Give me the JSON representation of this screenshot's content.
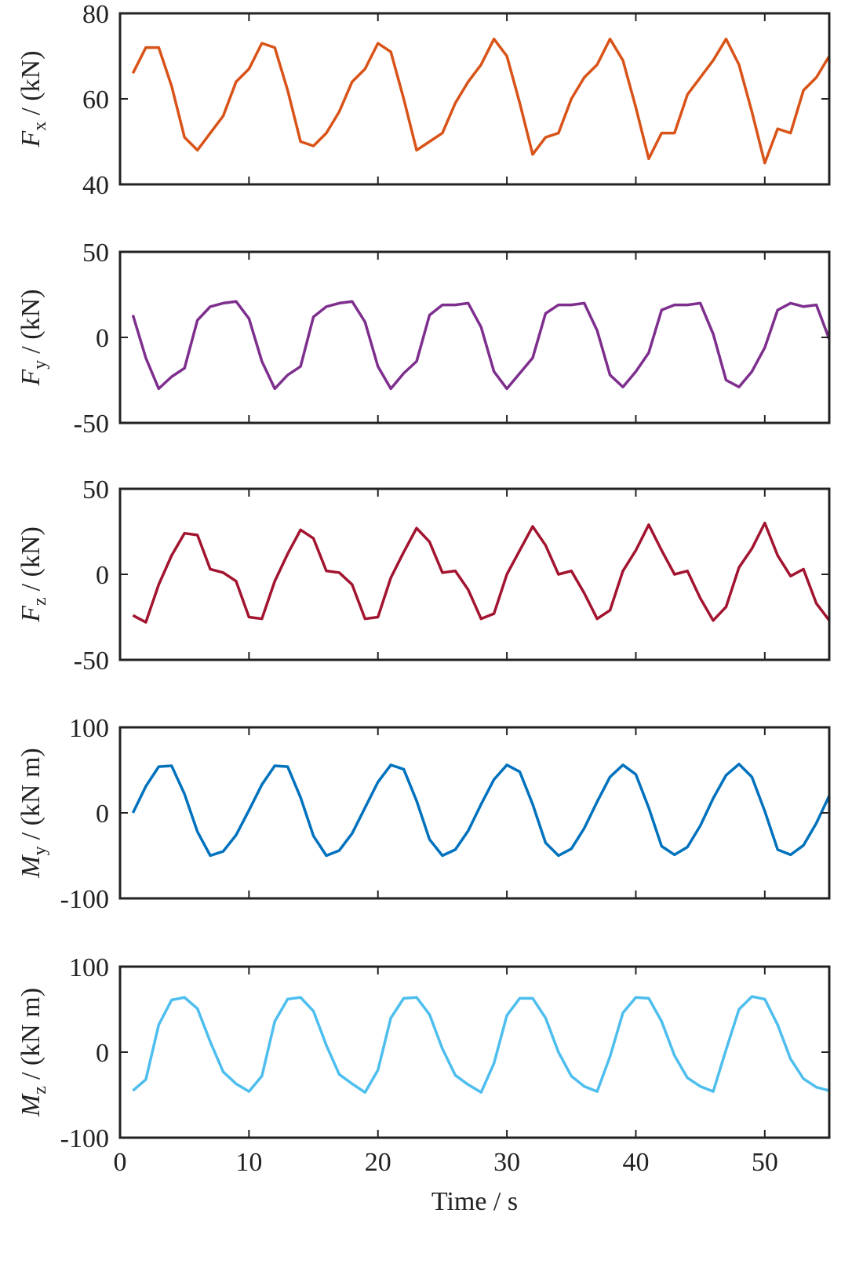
{
  "chart_data": [
    {
      "type": "line",
      "ylabel": {
        "symbol": "F",
        "subscript": "x",
        "unit": "/ (kN)"
      },
      "x": [
        1,
        2,
        3,
        4,
        5,
        6,
        7,
        8,
        9,
        10,
        11,
        12,
        13,
        14,
        15,
        16,
        17,
        18,
        19,
        20,
        21,
        22,
        23,
        24,
        25,
        26,
        27,
        28,
        29,
        30,
        31,
        32,
        33,
        34,
        35,
        36,
        37,
        38,
        39,
        40,
        41,
        42,
        43,
        44,
        45,
        46,
        47,
        48,
        49,
        50,
        51,
        52,
        53,
        54,
        55
      ],
      "series": [
        {
          "color": "#D95319",
          "values": [
            66,
            72,
            72,
            63,
            51,
            48,
            52,
            56,
            64,
            67,
            73,
            72,
            62,
            50,
            49,
            52,
            57,
            64,
            67,
            73,
            71,
            60,
            48,
            50,
            52,
            59,
            64,
            68,
            74,
            70,
            59,
            47,
            51,
            52,
            60,
            65,
            68,
            74,
            69,
            58,
            46,
            52,
            52,
            61,
            65,
            69,
            74,
            68,
            57,
            45,
            53,
            52,
            62,
            65,
            70
          ]
        }
      ],
      "xlim": [
        0,
        55
      ],
      "xticks": [
        0,
        10,
        20,
        30,
        40,
        50
      ],
      "xtick_labels": false,
      "ylim": [
        40,
        80
      ],
      "yticks": [
        40,
        60,
        80
      ]
    },
    {
      "type": "line",
      "ylabel": {
        "symbol": "F",
        "subscript": "y",
        "unit": "/ (kN)"
      },
      "x": [
        1,
        2,
        3,
        4,
        5,
        6,
        7,
        8,
        9,
        10,
        11,
        12,
        13,
        14,
        15,
        16,
        17,
        18,
        19,
        20,
        21,
        22,
        23,
        24,
        25,
        26,
        27,
        28,
        29,
        30,
        31,
        32,
        33,
        34,
        35,
        36,
        37,
        38,
        39,
        40,
        41,
        42,
        43,
        44,
        45,
        46,
        47,
        48,
        49,
        50,
        51,
        52,
        53,
        54,
        55
      ],
      "series": [
        {
          "color": "#7E2F8E",
          "values": [
            13,
            -12,
            -30,
            -23,
            -18,
            10,
            18,
            20,
            21,
            11,
            -14,
            -30,
            -22,
            -17,
            12,
            18,
            20,
            21,
            9,
            -17,
            -30,
            -21,
            -14,
            13,
            19,
            19,
            20,
            6,
            -20,
            -30,
            -21,
            -12,
            14,
            19,
            19,
            20,
            4,
            -22,
            -29,
            -20,
            -9,
            16,
            19,
            19,
            20,
            2,
            -25,
            -29,
            -20,
            -6,
            16,
            20,
            18,
            19,
            -1
          ]
        }
      ],
      "xlim": [
        0,
        55
      ],
      "xticks": [
        0,
        10,
        20,
        30,
        40,
        50
      ],
      "xtick_labels": false,
      "ylim": [
        -50,
        50
      ],
      "yticks": [
        -50,
        0,
        50
      ]
    },
    {
      "type": "line",
      "ylabel": {
        "symbol": "F",
        "subscript": "z",
        "unit": "/ (kN)"
      },
      "x": [
        1,
        2,
        3,
        4,
        5,
        6,
        7,
        8,
        9,
        10,
        11,
        12,
        13,
        14,
        15,
        16,
        17,
        18,
        19,
        20,
        21,
        22,
        23,
        24,
        25,
        26,
        27,
        28,
        29,
        30,
        31,
        32,
        33,
        34,
        35,
        36,
        37,
        38,
        39,
        40,
        41,
        42,
        43,
        44,
        45,
        46,
        47,
        48,
        49,
        50,
        51,
        52,
        53,
        54,
        55
      ],
      "series": [
        {
          "color": "#A2142F",
          "values": [
            -24,
            -28,
            -6,
            11,
            24,
            23,
            3,
            1,
            -4,
            -25,
            -26,
            -4,
            12,
            26,
            21,
            2,
            1,
            -6,
            -26,
            -25,
            -2,
            13,
            27,
            19,
            1,
            2,
            -9,
            -26,
            -23,
            0,
            14,
            28,
            17,
            0,
            2,
            -11,
            -26,
            -21,
            2,
            14,
            29,
            14,
            0,
            2,
            -14,
            -27,
            -19,
            4,
            15,
            30,
            11,
            -1,
            3,
            -17,
            -27
          ]
        }
      ],
      "xlim": [
        0,
        55
      ],
      "xticks": [
        0,
        10,
        20,
        30,
        40,
        50
      ],
      "xtick_labels": false,
      "ylim": [
        -50,
        50
      ],
      "yticks": [
        -50,
        0,
        50
      ]
    },
    {
      "type": "line",
      "ylabel": {
        "symbol": "M",
        "subscript": "y",
        "unit": "/ (kN m)"
      },
      "x": [
        1,
        2,
        3,
        4,
        5,
        6,
        7,
        8,
        9,
        10,
        11,
        12,
        13,
        14,
        15,
        16,
        17,
        18,
        19,
        20,
        21,
        22,
        23,
        24,
        25,
        26,
        27,
        28,
        29,
        30,
        31,
        32,
        33,
        34,
        35,
        36,
        37,
        38,
        39,
        40,
        41,
        42,
        43,
        44,
        45,
        46,
        47,
        48,
        49,
        50,
        51,
        52,
        53,
        54,
        55
      ],
      "series": [
        {
          "color": "#0072BD",
          "values": [
            0,
            31,
            54,
            55,
            22,
            -22,
            -50,
            -45,
            -26,
            3,
            33,
            55,
            54,
            18,
            -27,
            -50,
            -44,
            -24,
            6,
            36,
            56,
            51,
            14,
            -31,
            -50,
            -43,
            -21,
            10,
            39,
            56,
            48,
            10,
            -35,
            -50,
            -42,
            -18,
            13,
            42,
            56,
            45,
            6,
            -39,
            -49,
            -40,
            -15,
            17,
            44,
            57,
            42,
            2,
            -43,
            -49,
            -38,
            -12,
            20
          ]
        }
      ],
      "xlim": [
        0,
        55
      ],
      "xticks": [
        0,
        10,
        20,
        30,
        40,
        50
      ],
      "xtick_labels": false,
      "ylim": [
        -100,
        100
      ],
      "yticks": [
        -100,
        0,
        100
      ]
    },
    {
      "type": "line",
      "ylabel": {
        "symbol": "M",
        "subscript": "z",
        "unit": "/ (kN m)"
      },
      "x": [
        1,
        2,
        3,
        4,
        5,
        6,
        7,
        8,
        9,
        10,
        11,
        12,
        13,
        14,
        15,
        16,
        17,
        18,
        19,
        20,
        21,
        22,
        23,
        24,
        25,
        26,
        27,
        28,
        29,
        30,
        31,
        32,
        33,
        34,
        35,
        36,
        37,
        38,
        39,
        40,
        41,
        42,
        43,
        44,
        45,
        46,
        47,
        48,
        49,
        50,
        51,
        52,
        53,
        54,
        55
      ],
      "series": [
        {
          "color": "#4DBEEE",
          "values": [
            -45,
            -32,
            32,
            61,
            64,
            51,
            12,
            -23,
            -37,
            -46,
            -28,
            36,
            62,
            64,
            48,
            8,
            -26,
            -37,
            -47,
            -21,
            40,
            63,
            64,
            44,
            4,
            -27,
            -38,
            -47,
            -13,
            43,
            63,
            63,
            40,
            0,
            -28,
            -40,
            -46,
            -5,
            46,
            64,
            63,
            36,
            -4,
            -30,
            -40,
            -46,
            3,
            50,
            65,
            62,
            32,
            -8,
            -31,
            -41,
            -45
          ]
        }
      ],
      "xlim": [
        0,
        55
      ],
      "xticks": [
        0,
        10,
        20,
        30,
        40,
        50
      ],
      "xtick_labels": true,
      "xlabel": "Time / s",
      "ylim": [
        -100,
        100
      ],
      "yticks": [
        -100,
        0,
        100
      ]
    }
  ]
}
